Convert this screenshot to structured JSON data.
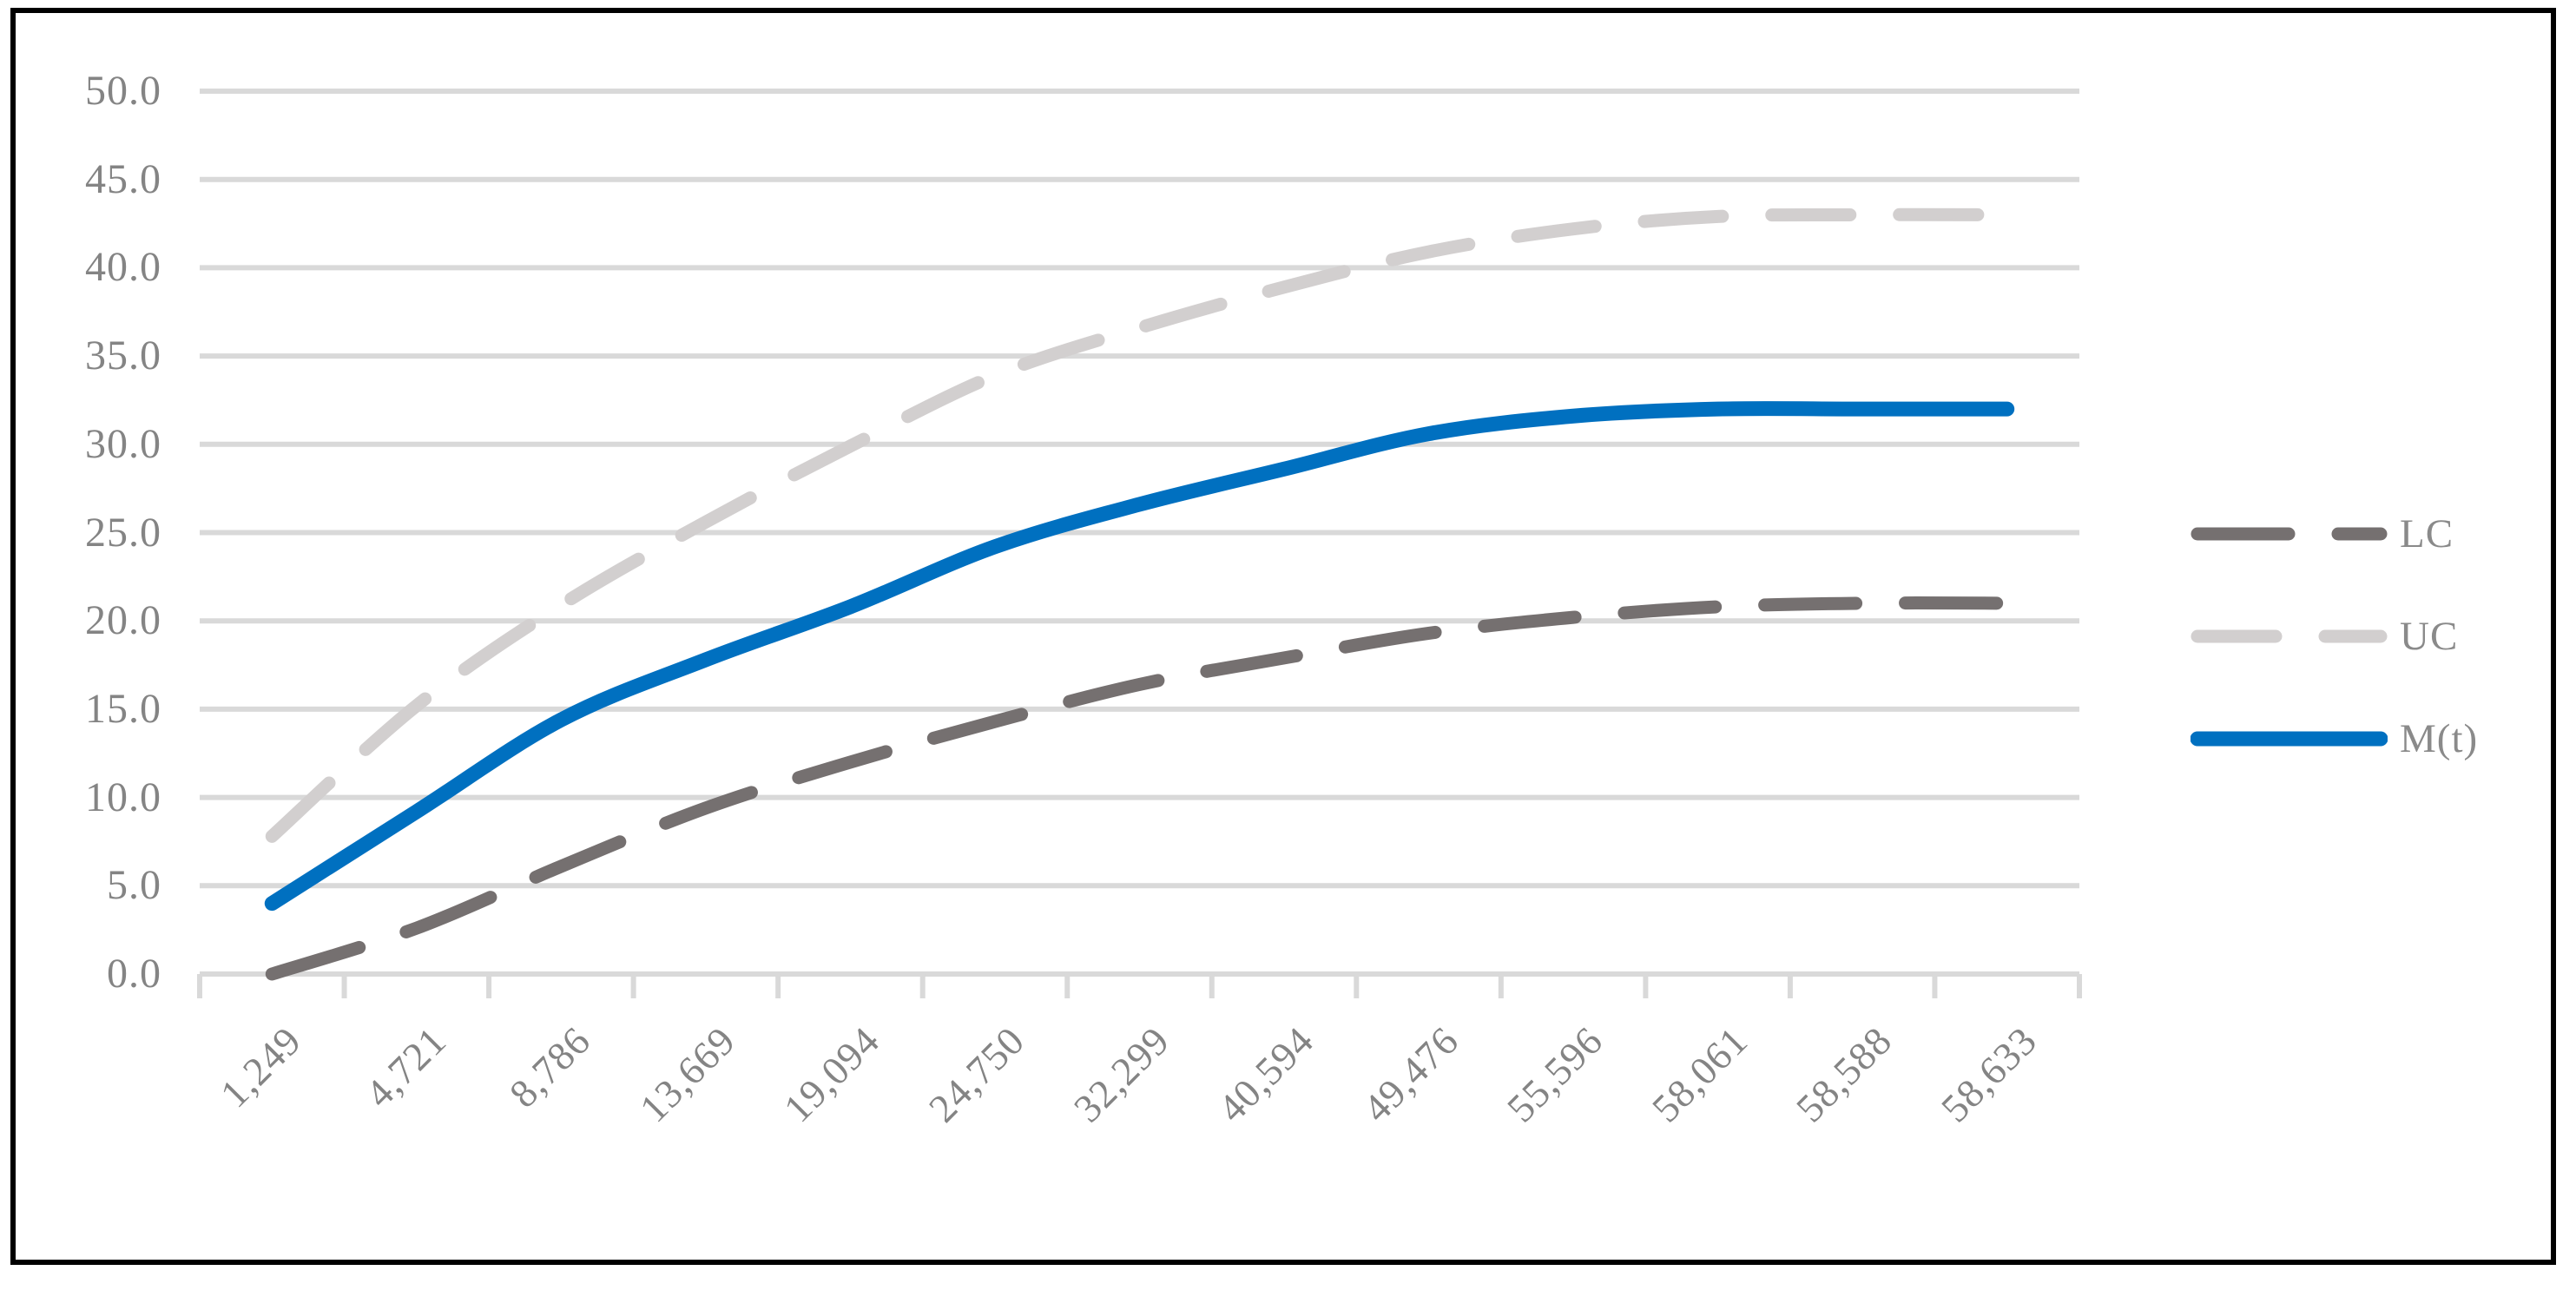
{
  "chart_data": {
    "type": "line",
    "title": "",
    "xlabel": "",
    "ylabel": "",
    "categories": [
      "1,249",
      "4,721",
      "8,786",
      "13,669",
      "19,094",
      "24,750",
      "32,299",
      "40,594",
      "49,476",
      "55,596",
      "58,061",
      "58,588",
      "58,633"
    ],
    "series": [
      {
        "name": "LC",
        "color": "#757070",
        "dash": [
          105,
          57
        ],
        "stroke_width": 15,
        "values": [
          0.0,
          2.6,
          6.1,
          9.4,
          12.0,
          14.3,
          16.4,
          17.9,
          19.3,
          20.2,
          20.8,
          21.0,
          21.0
        ]
      },
      {
        "name": "UC",
        "color": "#d2cfcf",
        "dash": [
          90,
          57
        ],
        "stroke_width": 15,
        "values": [
          7.8,
          15.2,
          20.9,
          25.6,
          29.9,
          33.9,
          36.6,
          38.9,
          40.9,
          42.2,
          42.9,
          43.0,
          43.0
        ]
      },
      {
        "name": "M(t)",
        "color": "#0070c0",
        "dash": null,
        "stroke_width": 17,
        "values": [
          4.0,
          9.2,
          14.4,
          17.8,
          20.8,
          24.2,
          26.6,
          28.6,
          30.6,
          31.6,
          32.0,
          32.0,
          32.0
        ]
      }
    ],
    "ylim": [
      0,
      50
    ],
    "y_tick_step": 5,
    "y_tick_labels": [
      "0.0",
      "5.0",
      "10.0",
      "15.0",
      "20.0",
      "25.0",
      "30.0",
      "35.0",
      "40.0",
      "45.0",
      "50.0"
    ],
    "grid": true,
    "smoothed": true,
    "legend_position": "right"
  },
  "colors": {
    "background": "#ffffff",
    "frame_border": "#000000",
    "gridline": "#d9d9d9",
    "axis_line": "#d9d9d9",
    "tick_mark": "#d9d9d9",
    "axis_text": "#848484",
    "legend_text": "#8a8a8a"
  }
}
